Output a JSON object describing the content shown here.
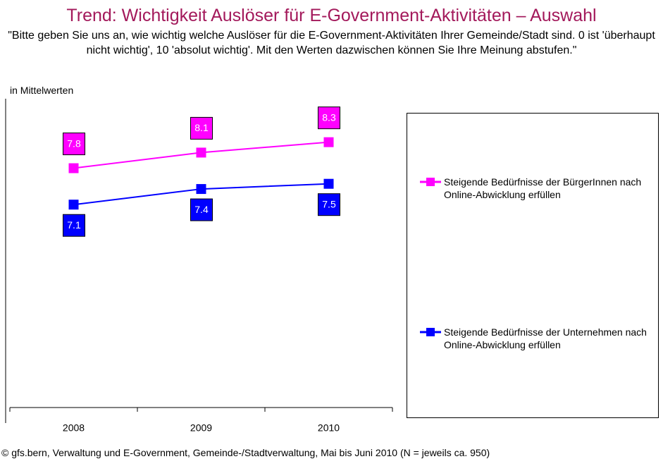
{
  "chart_data": {
    "type": "line",
    "title": "Trend: Wichtigkeit Auslöser für E-Government-Aktivitäten – Auswahl",
    "subtitle": "\"Bitte geben Sie uns an, wie wichtig welche Auslöser für die E-Government-Aktivitäten Ihrer Gemeinde/Stadt sind. 0 ist 'überhaupt nicht wichtig', 10 'absolut wichtig'. Mit den Werten dazwischen können Sie Ihre Meinung abstufen.\"",
    "y_label": "in Mittelwerten",
    "categories": [
      "2008",
      "2009",
      "2010"
    ],
    "series": [
      {
        "name": "Steigende Bedürfnisse der BürgerInnen nach Online-Abwicklung erfüllen",
        "color": "#ff00ff",
        "values": [
          7.8,
          8.1,
          8.3
        ]
      },
      {
        "name": "Steigende Bedürfnisse der Unternehmen nach Online-Abwicklung erfüllen",
        "color": "#0000ff",
        "values": [
          7.1,
          7.4,
          7.5
        ]
      }
    ],
    "ylim": [
      3.2,
      9
    ],
    "legend": "right",
    "source": "© gfs.bern, Verwaltung und E-Government, Gemeinde-/Stadtverwaltung, Mai bis Juni 2010 (N = jeweils ca. 950)"
  }
}
